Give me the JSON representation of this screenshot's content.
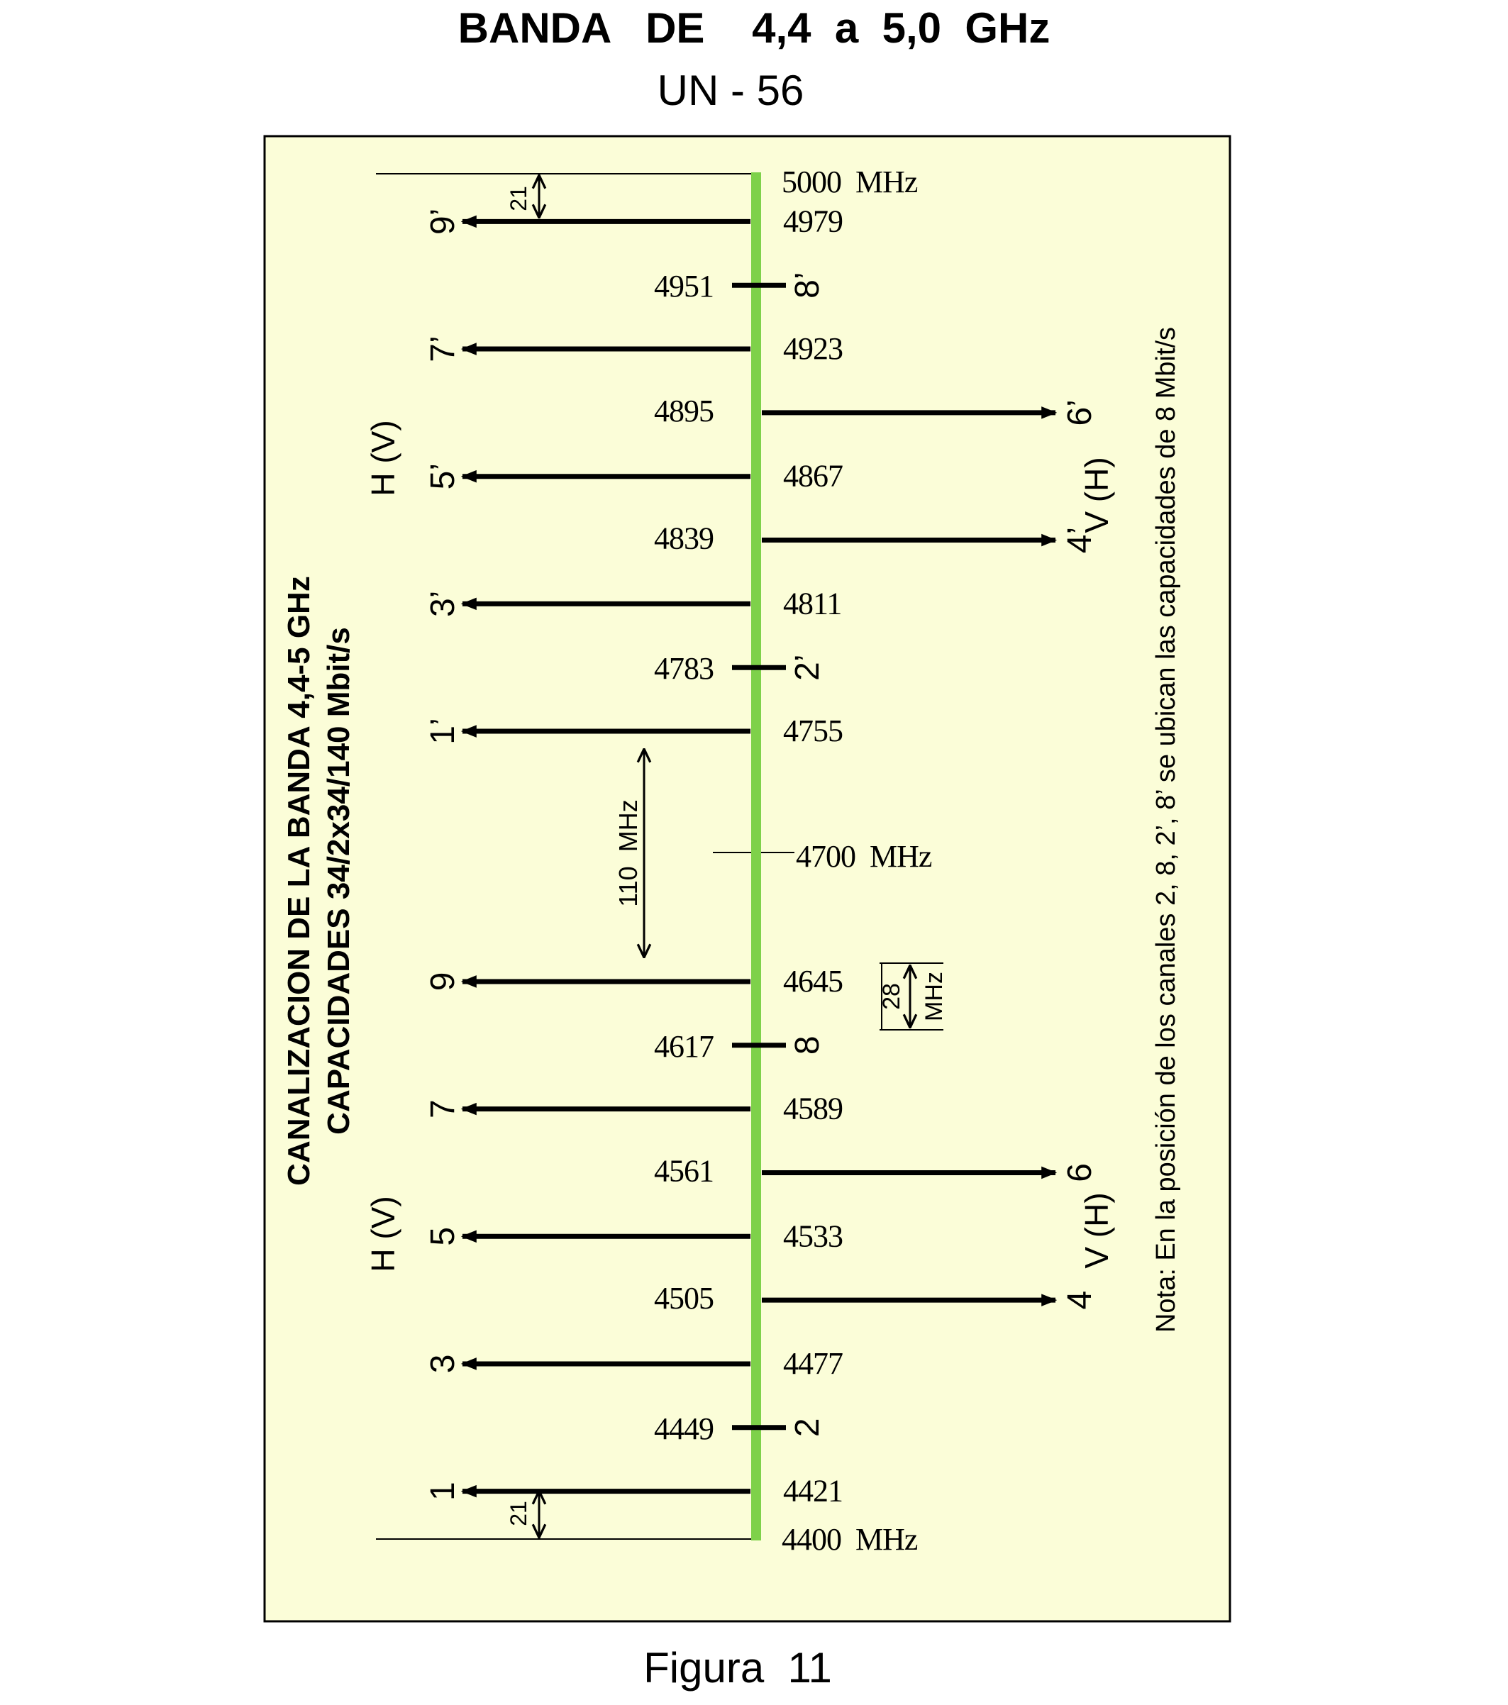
{
  "header": {
    "title": "BANDA   DE    4,4  a  5,0  GHz",
    "subtitle": "UN - 56"
  },
  "caption": "Figura  11",
  "panel": {
    "heading_line1": "CANALIZACION DE LA BANDA 4,4-5 GHz",
    "heading_line2": "CAPACIDADES 34/2x34/140 Mbit/s",
    "note": "Nota: En la posición de los canales 2, 8, 2’, 8’ se ubican las capacidades de 8 Mbit/s",
    "band_top_label": "5000  MHz",
    "band_bottom_label": "4400  MHz",
    "center_label": "4700  MHz",
    "gap_label": "110  MHz",
    "guard_top_label": "21",
    "guard_bottom_label": "21",
    "spacing_value": "28",
    "spacing_unit": "MHz",
    "pol_left_upper": "H (V)",
    "pol_left_lower": "H (V)",
    "pol_right_upper": "V (H)",
    "pol_right_lower": "V (H)"
  },
  "colors": {
    "background_panel": "#fbfdd8",
    "band_axis": "#7ed14a",
    "ink": "#000000"
  },
  "channels": [
    {
      "id": "1",
      "freq": 4421,
      "freq_label": "4421",
      "side": "left"
    },
    {
      "id": "2",
      "freq": 4449,
      "freq_label": "4449",
      "side": "tick"
    },
    {
      "id": "3",
      "freq": 4477,
      "freq_label": "4477",
      "side": "left"
    },
    {
      "id": "4",
      "freq": 4505,
      "freq_label": "4505",
      "side": "right"
    },
    {
      "id": "5",
      "freq": 4533,
      "freq_label": "4533",
      "side": "left"
    },
    {
      "id": "6",
      "freq": 4561,
      "freq_label": "4561",
      "side": "right"
    },
    {
      "id": "7",
      "freq": 4589,
      "freq_label": "4589",
      "side": "left"
    },
    {
      "id": "8",
      "freq": 4617,
      "freq_label": "4617",
      "side": "tick"
    },
    {
      "id": "9",
      "freq": 4645,
      "freq_label": "4645",
      "side": "left"
    },
    {
      "id": "1’",
      "freq": 4755,
      "freq_label": "4755",
      "side": "left"
    },
    {
      "id": "2’",
      "freq": 4783,
      "freq_label": "4783",
      "side": "tick"
    },
    {
      "id": "3’",
      "freq": 4811,
      "freq_label": "4811",
      "side": "left"
    },
    {
      "id": "4’",
      "freq": 4839,
      "freq_label": "4839",
      "side": "right"
    },
    {
      "id": "5’",
      "freq": 4867,
      "freq_label": "4867",
      "side": "left"
    },
    {
      "id": "6’",
      "freq": 4895,
      "freq_label": "4895",
      "side": "right"
    },
    {
      "id": "7’",
      "freq": 4923,
      "freq_label": "4923",
      "side": "left"
    },
    {
      "id": "8’",
      "freq": 4951,
      "freq_label": "4951",
      "side": "tick"
    },
    {
      "id": "9’",
      "freq": 4979,
      "freq_label": "4979",
      "side": "left"
    }
  ]
}
